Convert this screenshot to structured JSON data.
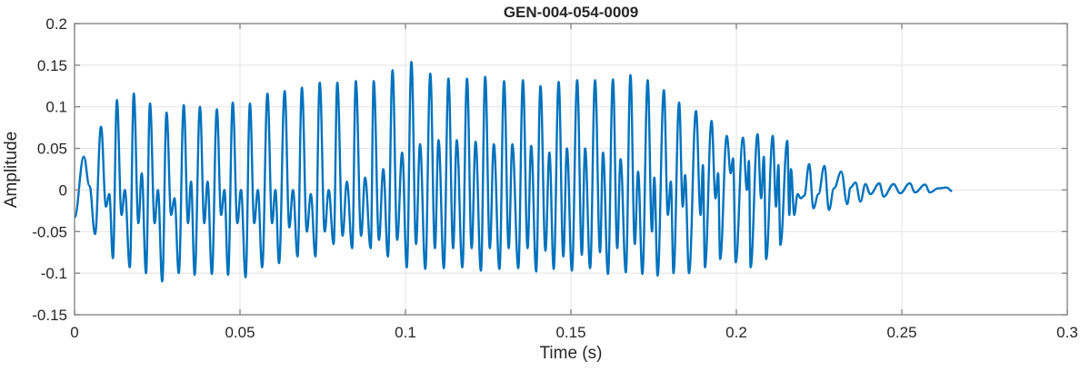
{
  "chart_data": {
    "type": "line",
    "title": "GEN-004-054-0009",
    "xlabel": "Time (s)",
    "ylabel": "Amplitude",
    "xlim": [
      0,
      0.3
    ],
    "ylim": [
      -0.15,
      0.2
    ],
    "xticks": [
      0,
      0.05,
      0.1,
      0.15,
      0.2,
      0.25,
      0.3
    ],
    "xtick_labels": [
      "0",
      "0.05",
      "0.1",
      "0.15",
      "0.2",
      "0.25",
      "0.3"
    ],
    "yticks": [
      -0.15,
      -0.1,
      -0.05,
      0,
      0.05,
      0.1,
      0.15,
      0.2
    ],
    "ytick_labels": [
      "-0.15",
      "-0.1",
      "-0.05",
      "0",
      "0.05",
      "0.1",
      "0.15",
      "0.2"
    ],
    "grid": true,
    "legend": "none",
    "line_color": "#0072BD",
    "series": [
      {
        "points": [
          [
            0,
            -0.033
          ],
          [
            0.0028,
            0.04
          ],
          [
            0.0045,
            0.005
          ],
          [
            0.0062,
            -0.053
          ],
          [
            0.008,
            0.076
          ],
          [
            0.0095,
            -0.02
          ],
          [
            0.0105,
            -0.005
          ],
          [
            0.0116,
            -0.082
          ],
          [
            0.0128,
            0.108
          ],
          [
            0.0142,
            -0.03
          ],
          [
            0.0152,
            0.0
          ],
          [
            0.0167,
            -0.093
          ],
          [
            0.0179,
            0.116
          ],
          [
            0.0193,
            -0.04
          ],
          [
            0.0203,
            0.02
          ],
          [
            0.0216,
            -0.1
          ],
          [
            0.0228,
            0.104
          ],
          [
            0.0242,
            -0.04
          ],
          [
            0.0252,
            0.0
          ],
          [
            0.0265,
            -0.11
          ],
          [
            0.0278,
            0.093
          ],
          [
            0.0292,
            -0.03
          ],
          [
            0.0302,
            -0.01
          ],
          [
            0.0315,
            -0.1
          ],
          [
            0.033,
            0.102
          ],
          [
            0.0343,
            -0.04
          ],
          [
            0.0352,
            0.01
          ],
          [
            0.0363,
            -0.102
          ],
          [
            0.0379,
            0.1
          ],
          [
            0.0392,
            -0.04
          ],
          [
            0.0402,
            0.01
          ],
          [
            0.0415,
            -0.101
          ],
          [
            0.043,
            0.097
          ],
          [
            0.0443,
            -0.03
          ],
          [
            0.0453,
            0.0
          ],
          [
            0.0464,
            -0.102
          ],
          [
            0.0478,
            0.105
          ],
          [
            0.0492,
            -0.04
          ],
          [
            0.0503,
            0.0
          ],
          [
            0.0517,
            -0.105
          ],
          [
            0.053,
            0.104
          ],
          [
            0.0543,
            -0.04
          ],
          [
            0.0554,
            0.0
          ],
          [
            0.0567,
            -0.093
          ],
          [
            0.0583,
            0.116
          ],
          [
            0.0597,
            -0.04
          ],
          [
            0.0607,
            0.0
          ],
          [
            0.0618,
            -0.088
          ],
          [
            0.0635,
            0.119
          ],
          [
            0.0649,
            -0.045
          ],
          [
            0.066,
            0.0
          ],
          [
            0.0674,
            -0.08
          ],
          [
            0.0687,
            0.123
          ],
          [
            0.0702,
            -0.05
          ],
          [
            0.0714,
            -0.005
          ],
          [
            0.0728,
            -0.08
          ],
          [
            0.0741,
            0.129
          ],
          [
            0.0756,
            -0.05
          ],
          [
            0.0768,
            0.0
          ],
          [
            0.0783,
            -0.065
          ],
          [
            0.0794,
            0.129
          ],
          [
            0.081,
            -0.055
          ],
          [
            0.0823,
            0.01
          ],
          [
            0.0839,
            -0.07
          ],
          [
            0.085,
            0.131
          ],
          [
            0.0866,
            -0.055
          ],
          [
            0.0878,
            0.015
          ],
          [
            0.0895,
            -0.07
          ],
          [
            0.0904,
            0.131
          ],
          [
            0.092,
            -0.06
          ],
          [
            0.0933,
            0.025
          ],
          [
            0.0947,
            -0.08
          ],
          [
            0.0961,
            0.144
          ],
          [
            0.0975,
            -0.06
          ],
          [
            0.099,
            0.045
          ],
          [
            0.1004,
            -0.093
          ],
          [
            0.1018,
            0.154
          ],
          [
            0.1032,
            -0.065
          ],
          [
            0.1044,
            0.055
          ],
          [
            0.106,
            -0.095
          ],
          [
            0.1075,
            0.14
          ],
          [
            0.1089,
            -0.07
          ],
          [
            0.11,
            0.06
          ],
          [
            0.1116,
            -0.094
          ],
          [
            0.113,
            0.134
          ],
          [
            0.1144,
            -0.07
          ],
          [
            0.1155,
            0.06
          ],
          [
            0.1172,
            -0.093
          ],
          [
            0.1186,
            0.134
          ],
          [
            0.12,
            -0.07
          ],
          [
            0.1212,
            0.058
          ],
          [
            0.1228,
            -0.097
          ],
          [
            0.1241,
            0.136
          ],
          [
            0.1255,
            -0.07
          ],
          [
            0.1267,
            0.055
          ],
          [
            0.1284,
            -0.095
          ],
          [
            0.1298,
            0.131
          ],
          [
            0.1312,
            -0.07
          ],
          [
            0.1323,
            0.055
          ],
          [
            0.1341,
            -0.094
          ],
          [
            0.1355,
            0.132
          ],
          [
            0.1369,
            -0.07
          ],
          [
            0.138,
            0.053
          ],
          [
            0.1395,
            -0.098
          ],
          [
            0.1408,
            0.125
          ],
          [
            0.1423,
            -0.073
          ],
          [
            0.1435,
            0.045
          ],
          [
            0.1448,
            -0.095
          ],
          [
            0.1463,
            0.13
          ],
          [
            0.1477,
            -0.08
          ],
          [
            0.1488,
            0.05
          ],
          [
            0.1503,
            -0.097
          ],
          [
            0.1519,
            0.132
          ],
          [
            0.1533,
            -0.078
          ],
          [
            0.1543,
            0.05
          ],
          [
            0.1558,
            -0.094
          ],
          [
            0.1573,
            0.132
          ],
          [
            0.1588,
            -0.075
          ],
          [
            0.1597,
            0.045
          ],
          [
            0.1612,
            -0.101
          ],
          [
            0.1627,
            0.133
          ],
          [
            0.164,
            -0.07
          ],
          [
            0.165,
            0.037
          ],
          [
            0.1666,
            -0.099
          ],
          [
            0.168,
            0.138
          ],
          [
            0.1693,
            -0.065
          ],
          [
            0.1703,
            0.022
          ],
          [
            0.1716,
            -0.101
          ],
          [
            0.1732,
            0.132
          ],
          [
            0.1745,
            -0.05
          ],
          [
            0.1752,
            0.015
          ],
          [
            0.1762,
            -0.103
          ],
          [
            0.1781,
            0.12
          ],
          [
            0.1793,
            -0.03
          ],
          [
            0.1802,
            0.01
          ],
          [
            0.181,
            -0.1
          ],
          [
            0.1827,
            0.105
          ],
          [
            0.1838,
            -0.02
          ],
          [
            0.1845,
            0.018
          ],
          [
            0.1857,
            -0.1
          ],
          [
            0.1878,
            0.095
          ],
          [
            0.1892,
            -0.03
          ],
          [
            0.1899,
            0.03
          ],
          [
            0.1905,
            -0.093
          ],
          [
            0.1925,
            0.083
          ],
          [
            0.1937,
            -0.01
          ],
          [
            0.1945,
            0.02
          ],
          [
            0.1951,
            -0.083
          ],
          [
            0.1971,
            0.065
          ],
          [
            0.1983,
            0.02
          ],
          [
            0.199,
            0.038
          ],
          [
            0.1998,
            -0.087
          ],
          [
            0.202,
            0.063
          ],
          [
            0.2032,
            0.0
          ],
          [
            0.2038,
            0.035
          ],
          [
            0.2043,
            -0.093
          ],
          [
            0.2064,
            0.067
          ],
          [
            0.2075,
            -0.01
          ],
          [
            0.2083,
            0.04
          ],
          [
            0.209,
            -0.083
          ],
          [
            0.211,
            0.065
          ],
          [
            0.212,
            -0.02
          ],
          [
            0.2127,
            0.03
          ],
          [
            0.2133,
            -0.066
          ],
          [
            0.2154,
            0.059
          ],
          [
            0.216,
            -0.03
          ],
          [
            0.2165,
            0.025
          ],
          [
            0.2175,
            -0.03
          ],
          [
            0.2185,
            -0.005
          ],
          [
            0.2195,
            -0.01
          ],
          [
            0.2205,
            -0.007
          ],
          [
            0.222,
            0.031
          ],
          [
            0.2233,
            -0.022
          ],
          [
            0.2248,
            -0.005
          ],
          [
            0.2266,
            0.029
          ],
          [
            0.228,
            -0.024
          ],
          [
            0.2295,
            0.002
          ],
          [
            0.2317,
            0.022
          ],
          [
            0.2335,
            -0.017
          ],
          [
            0.2345,
            0.003
          ],
          [
            0.236,
            0.009
          ],
          [
            0.2375,
            -0.014
          ],
          [
            0.239,
            0.007
          ],
          [
            0.2405,
            -0.005
          ],
          [
            0.2432,
            0.008
          ],
          [
            0.2445,
            -0.008
          ],
          [
            0.2475,
            0.007
          ],
          [
            0.2495,
            -0.004
          ],
          [
            0.2524,
            0.008
          ],
          [
            0.254,
            -0.003
          ],
          [
            0.257,
            0.0065
          ],
          [
            0.2585,
            -0.003
          ],
          [
            0.261,
            0.002
          ],
          [
            0.2635,
            0.003
          ],
          [
            0.2652,
            -0.0015
          ]
        ]
      }
    ]
  }
}
